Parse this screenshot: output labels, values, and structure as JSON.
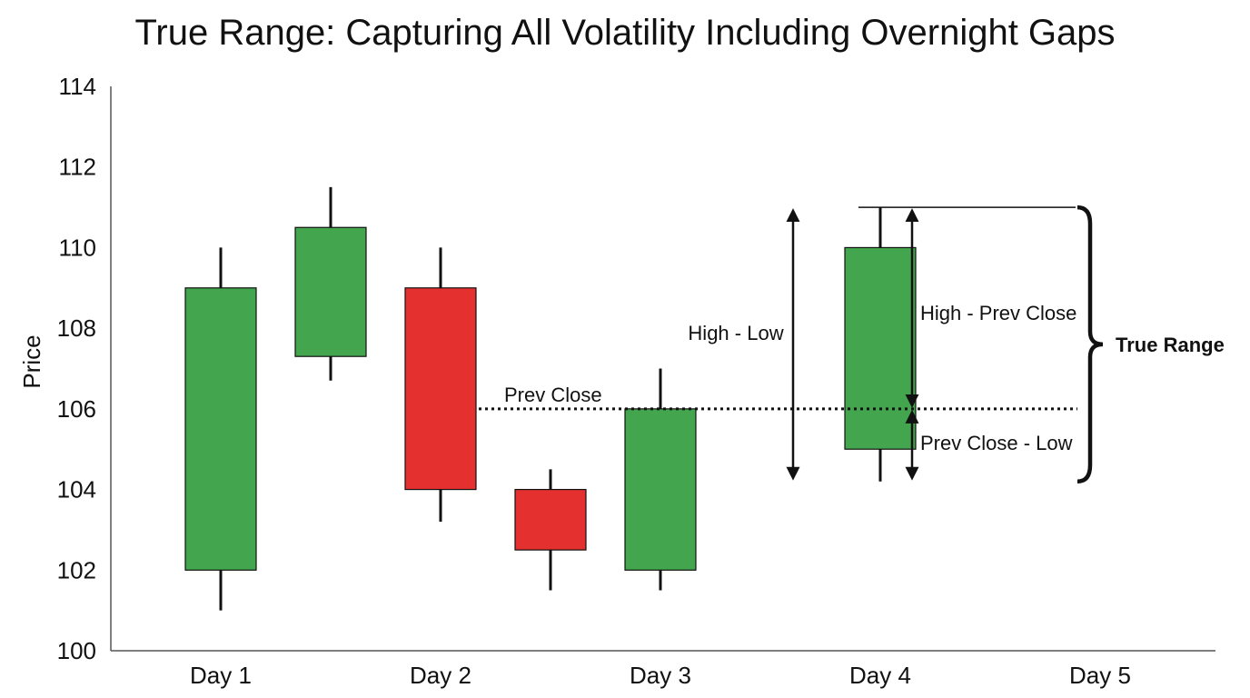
{
  "chart_data": {
    "type": "candlestick",
    "title": "True Range: Capturing All Volatility Including Overnight Gaps",
    "xlabel": "",
    "ylabel": "Price",
    "ylim": [
      100,
      114
    ],
    "yticks": [
      100,
      102,
      104,
      106,
      108,
      110,
      112,
      114
    ],
    "categories": [
      "Day 1",
      "Day 2",
      "Day 3",
      "Day 4",
      "Day 5"
    ],
    "candles": [
      {
        "x": 0.0,
        "open": 102,
        "high": 110,
        "low": 101,
        "close": 109
      },
      {
        "x": 0.5,
        "open": 107.3,
        "high": 111.5,
        "low": 106.7,
        "close": 110.5
      },
      {
        "x": 1.0,
        "open": 109,
        "high": 110,
        "low": 103.2,
        "close": 104
      },
      {
        "x": 1.5,
        "open": 104,
        "high": 104.5,
        "low": 101.5,
        "close": 102.5
      },
      {
        "x": 2.0,
        "open": 102,
        "high": 107,
        "low": 101.5,
        "close": 106
      },
      {
        "x": 3.0,
        "open": 105,
        "high": 111,
        "low": 104.2,
        "close": 110
      }
    ],
    "prev_close": 106,
    "annotations": {
      "prev_close": "Prev Close",
      "high_low": "High - Low",
      "high_prev_close": "High - Prev Close",
      "prev_close_low": "Prev Close - Low",
      "true_range": "True Range"
    },
    "colors": {
      "up": "#43a64f",
      "down": "#e53030",
      "line": "#111111"
    },
    "grid": false
  }
}
